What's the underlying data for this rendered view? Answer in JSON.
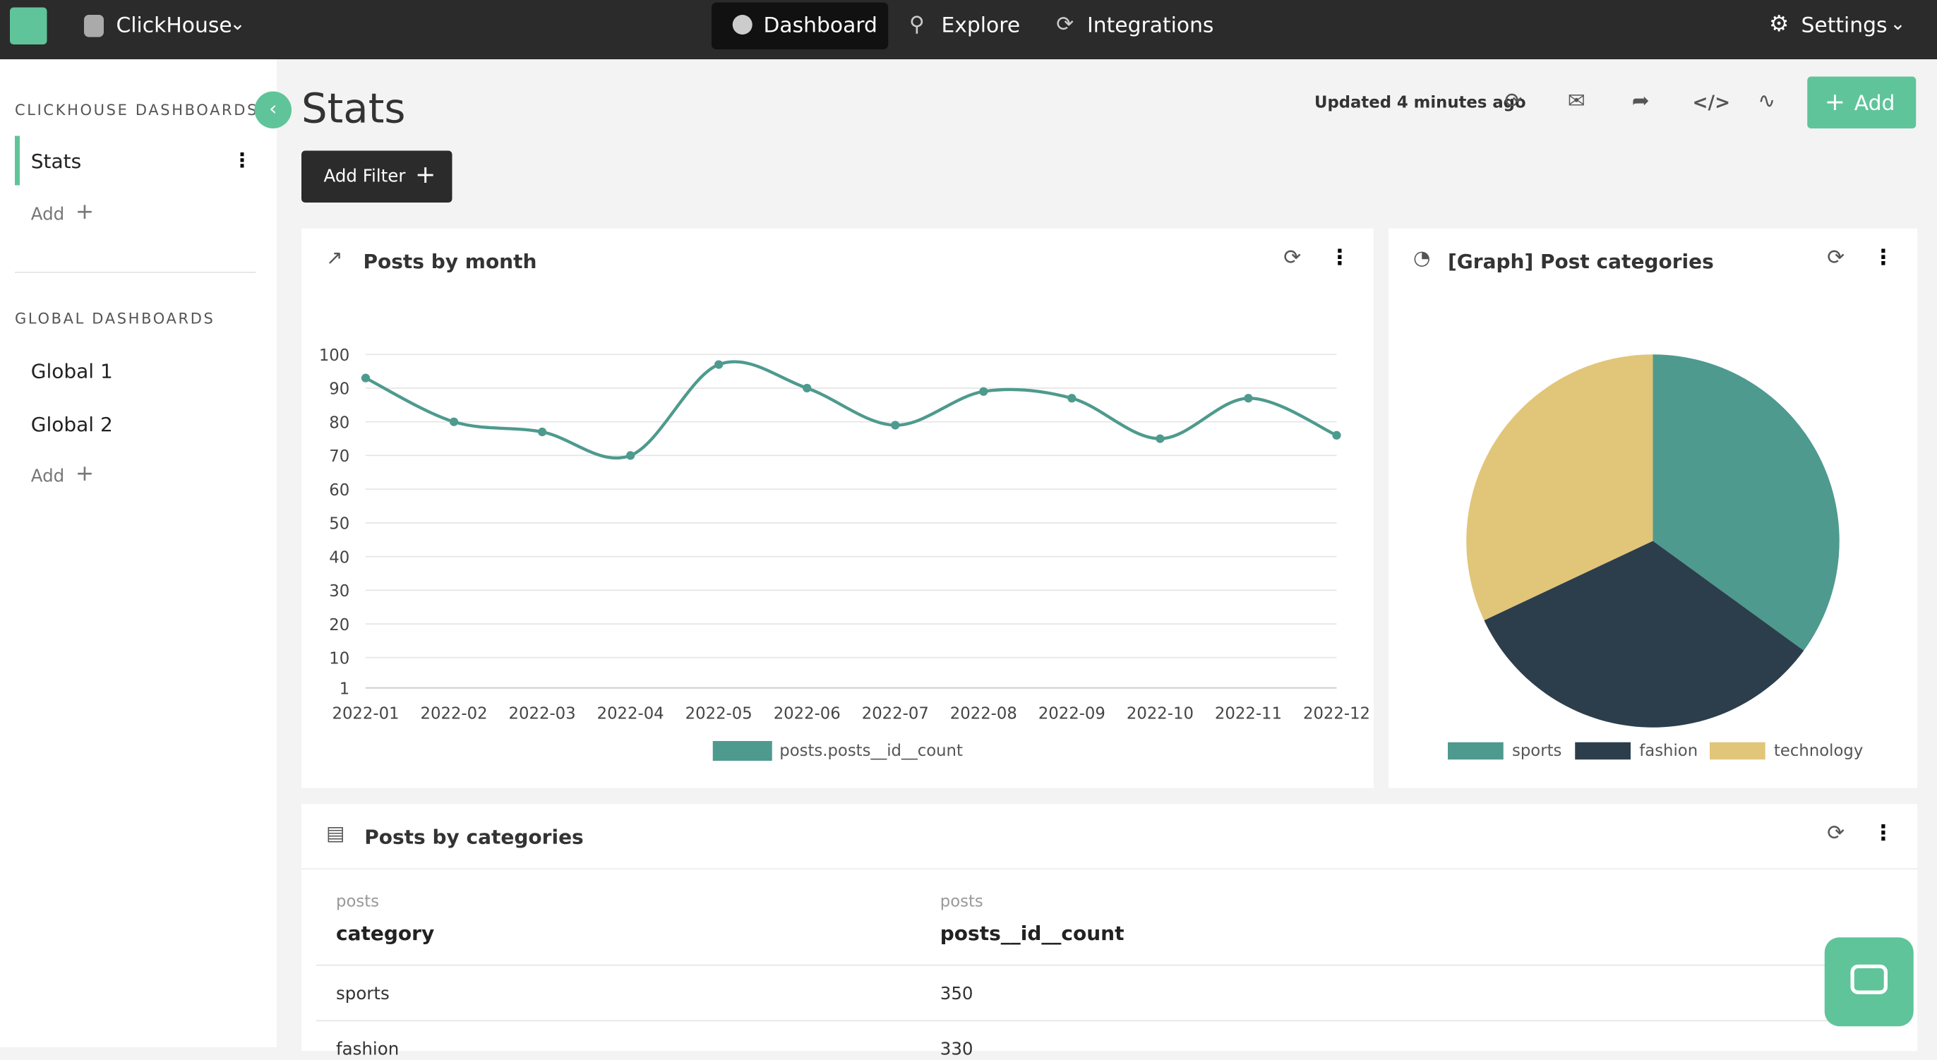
{
  "nav": {
    "brand": "ClickHouse",
    "tabs": [
      "Dashboard",
      "Explore",
      "Integrations"
    ],
    "settings": "Settings"
  },
  "sidebar": {
    "section1": "CLICKHOUSE DASHBOARDS",
    "dashboards": [
      "Stats"
    ],
    "add1": "Add",
    "section2": "GLOBAL DASHBOARDS",
    "global": [
      "Global 1",
      "Global 2"
    ],
    "add2": "Add"
  },
  "header": {
    "title": "Stats",
    "updated": "Updated 4 minutes ago",
    "add": "Add",
    "filter": "Add Filter"
  },
  "chart_data": [
    {
      "type": "line",
      "title": "Posts by month",
      "categories": [
        "2022-01",
        "2022-02",
        "2022-03",
        "2022-04",
        "2022-05",
        "2022-06",
        "2022-07",
        "2022-08",
        "2022-09",
        "2022-10",
        "2022-11",
        "2022-12"
      ],
      "series": [
        {
          "name": "posts.posts__id__count",
          "color": "#4e9a8e",
          "values": [
            93,
            80,
            77,
            70,
            97,
            90,
            79,
            89,
            87,
            75,
            87,
            76
          ]
        }
      ],
      "ylim": [
        1,
        100
      ],
      "yticks": [
        1,
        10,
        20,
        30,
        40,
        50,
        60,
        70,
        80,
        90,
        100
      ],
      "grid": true
    },
    {
      "type": "pie",
      "title": "[Graph] Post categories",
      "categories": [
        "sports",
        "fashion",
        "technology"
      ],
      "values": [
        350,
        330,
        320
      ],
      "colors": [
        "#4e9a8e",
        "#2c3e4c",
        "#e1c579"
      ]
    }
  ],
  "table": {
    "title": "Posts by categories",
    "columns": [
      {
        "source": "posts",
        "name": "category"
      },
      {
        "source": "posts",
        "name": "posts__id__count"
      }
    ],
    "rows": [
      [
        "sports",
        350
      ],
      [
        "fashion",
        330
      ]
    ]
  }
}
